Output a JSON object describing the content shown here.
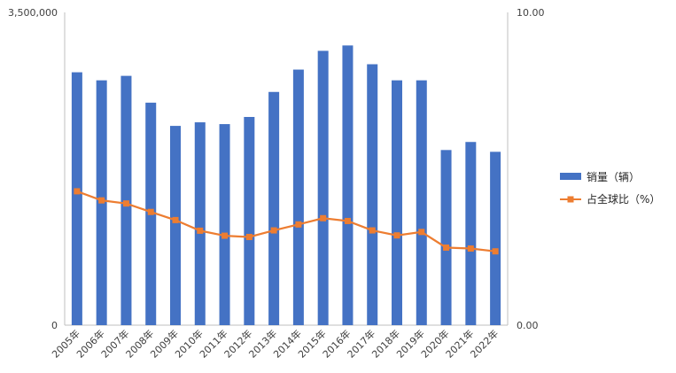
{
  "chart_data": {
    "type": "bar",
    "title": "",
    "xlabel": "",
    "ylabel": "",
    "categories": [
      "2005年",
      "2006年",
      "2007年",
      "2008年",
      "2009年",
      "2010年",
      "2011年",
      "2012年",
      "2013年",
      "2014年",
      "2015年",
      "2016年",
      "2017年",
      "2018年",
      "2019年",
      "2020年",
      "2021年",
      "2022年"
    ],
    "series": [
      {
        "name": "销量（辆）",
        "type": "bar",
        "axis": "left",
        "color": "#4472C4",
        "values": [
          2830000,
          2740000,
          2790000,
          2490000,
          2230000,
          2270000,
          2250000,
          2330000,
          2610000,
          2860000,
          3070000,
          3130000,
          2920000,
          2740000,
          2740000,
          1960000,
          2050000,
          1940000
        ]
      },
      {
        "name": "占全球比（%）",
        "type": "line",
        "axis": "right",
        "color": "#ED7D31",
        "marker": "square",
        "values": [
          4.28,
          3.99,
          3.89,
          3.62,
          3.36,
          3.02,
          2.86,
          2.82,
          3.03,
          3.22,
          3.42,
          3.33,
          3.03,
          2.87,
          2.98,
          2.48,
          2.45,
          2.36
        ]
      }
    ],
    "y_left": {
      "ylim": [
        0,
        3500000
      ],
      "tick_labels": [
        "0",
        "3,500,000"
      ]
    },
    "y_right": {
      "ylim": [
        0,
        10
      ],
      "tick_labels": [
        "0.00",
        "10.00"
      ]
    },
    "grid": false,
    "legend": {
      "position": "right",
      "entries": [
        "销量（辆）",
        "占全球比（%）"
      ]
    }
  }
}
